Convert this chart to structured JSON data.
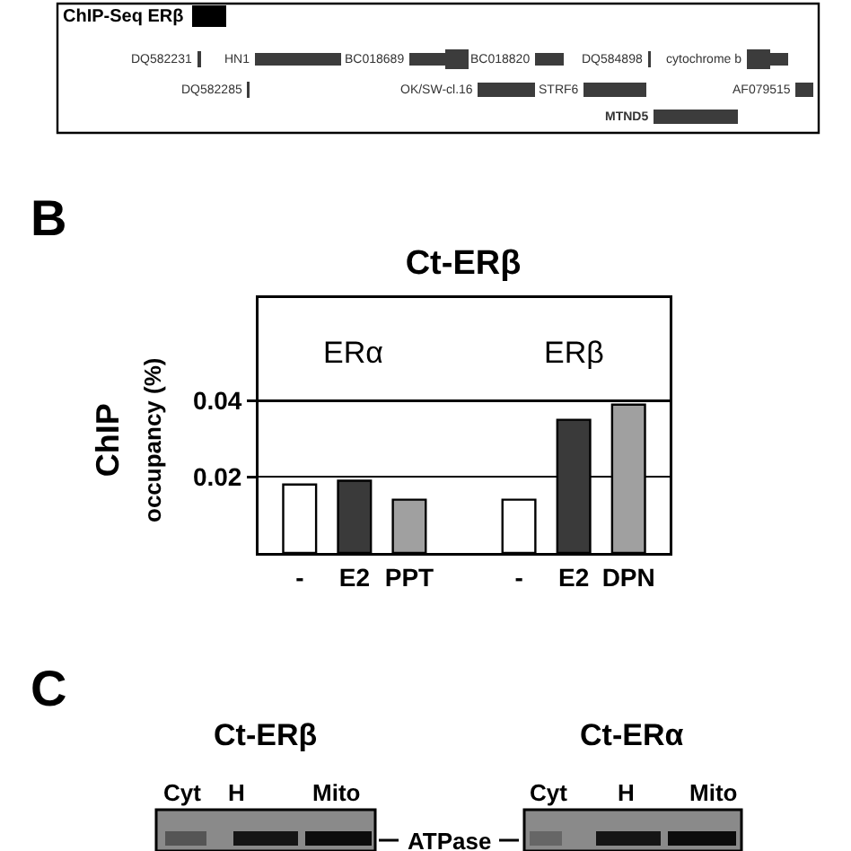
{
  "chart_data": [
    {
      "type": "other",
      "annotations": [
        "ChIP-Seq ERβ",
        "DQ582231",
        "HN1",
        "BC018689",
        "BC018820",
        "DQ584898",
        "cytochrome b",
        "DQ582285",
        "OK/SW-cl.16",
        "STRF6",
        "AF079515",
        "MTND5"
      ]
    },
    {
      "type": "bar",
      "title": "Ct-ERβ",
      "ylabel": "ChIP\noccupancy (%)",
      "categories": [
        "-",
        "E2",
        "PPT",
        null,
        "-",
        "E2",
        "DPN"
      ],
      "values": [
        0.018,
        0.019,
        0.014,
        null,
        0.014,
        0.035,
        0.039
      ],
      "colors": [
        "#ffffff",
        "#3a3a3a",
        "#a0a0a0",
        null,
        "#ffffff",
        "#3a3a3a",
        "#a0a0a0"
      ],
      "ylim": [
        0,
        0.067
      ],
      "yticks": [
        0.02,
        0.04
      ],
      "grid": "y",
      "annotations": [
        "B",
        "ERα",
        "ERβ"
      ]
    },
    {
      "type": "other",
      "annotations": [
        "C",
        "Ct-ERβ",
        "Ct-ERα",
        "Cyt",
        "H",
        "Mito",
        "Cyt",
        "H",
        "Mito",
        "ATPase"
      ]
    }
  ]
}
